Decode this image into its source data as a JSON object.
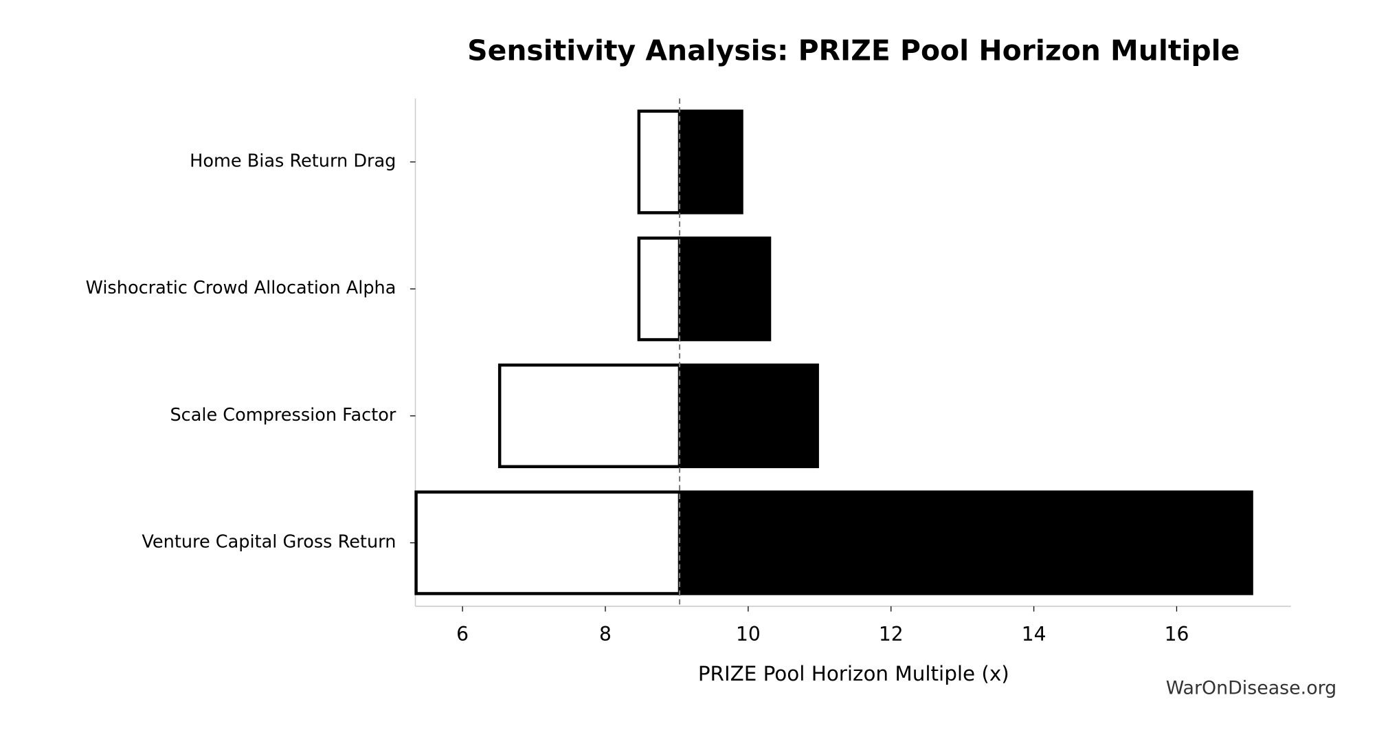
{
  "chart_data": {
    "type": "tornado",
    "title": "Sensitivity Analysis: PRIZE Pool Horizon Multiple",
    "x_label": "PRIZE Pool Horizon Multiple (x)",
    "watermark": "WarOnDisease.org",
    "categories": [
      "Home Bias Return Drag",
      "Wishocratic Crowd Allocation Alpha",
      "Scale Compression Factor",
      "Venture Capital Gross Return"
    ],
    "baseline": 9.04,
    "series": [
      {
        "color": "#ffffff",
        "values": [
          8.47,
          8.47,
          6.52,
          5.35
        ]
      },
      {
        "color": "#000000",
        "values": [
          9.91,
          10.3,
          10.97,
          17.05
        ]
      }
    ],
    "xlim": [
      5.34,
      17.6
    ],
    "xticks": [
      6,
      8,
      10,
      12,
      14,
      16
    ]
  }
}
